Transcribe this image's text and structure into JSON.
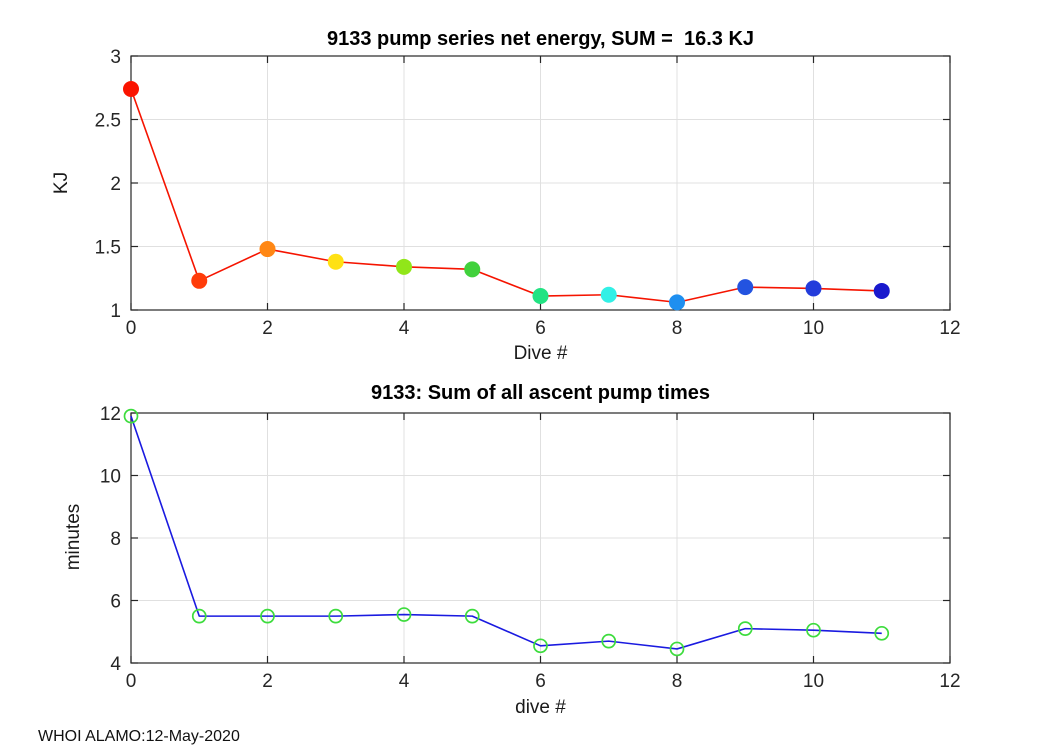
{
  "figure": {
    "background": "#ffffff",
    "axis_color": "#262626",
    "grid_color": "#e0e0e0"
  },
  "chart_data": [
    {
      "type": "line",
      "title": "9133 pump series net energy, SUM =  16.3 KJ",
      "xlabel": "Dive #",
      "ylabel": "KJ",
      "x": [
        0,
        1,
        2,
        3,
        4,
        5,
        6,
        7,
        8,
        9,
        10,
        11
      ],
      "values": [
        2.74,
        1.23,
        1.48,
        1.38,
        1.34,
        1.32,
        1.11,
        1.12,
        1.06,
        1.18,
        1.17,
        1.15
      ],
      "line_color": "#f51400",
      "line_width": 1.6,
      "marker_style": "filled",
      "marker_radius": 8,
      "marker_colors": [
        "#fa1400",
        "#ff3c0a",
        "#ff8714",
        "#ffe114",
        "#91e619",
        "#41d13c",
        "#23e383",
        "#32f0e6",
        "#1e8ff0",
        "#2353e0",
        "#233cdb",
        "#1919cd"
      ],
      "xlim": [
        0,
        12
      ],
      "ylim": [
        1,
        3
      ],
      "xticks": [
        0,
        2,
        4,
        6,
        8,
        10,
        12
      ],
      "yticks": [
        1,
        1.5,
        2,
        2.5,
        3
      ],
      "grid": true,
      "grid_color": "#e0e0e0",
      "axis_color": "#262626"
    },
    {
      "type": "line",
      "title": "9133: Sum of all ascent pump times",
      "xlabel": "dive #",
      "ylabel": "minutes",
      "x": [
        0,
        1,
        2,
        3,
        4,
        5,
        6,
        7,
        8,
        9,
        10,
        11
      ],
      "values": [
        11.9,
        5.5,
        5.5,
        5.5,
        5.55,
        5.5,
        4.55,
        4.7,
        4.45,
        5.1,
        5.05,
        4.95
      ],
      "line_color": "#1a1ae0",
      "line_width": 1.6,
      "marker_style": "open",
      "marker_radius": 6.5,
      "marker_color": "#3ddc3d",
      "marker_stroke_width": 1.7,
      "xlim": [
        0,
        12
      ],
      "ylim": [
        4,
        12
      ],
      "xticks": [
        0,
        2,
        4,
        6,
        8,
        10,
        12
      ],
      "yticks": [
        4,
        6,
        8,
        10,
        12
      ],
      "grid": true,
      "grid_color": "#e0e0e0",
      "axis_color": "#262626"
    }
  ],
  "footer": {
    "text": "WHOI ALAMO:12-May-2020"
  }
}
